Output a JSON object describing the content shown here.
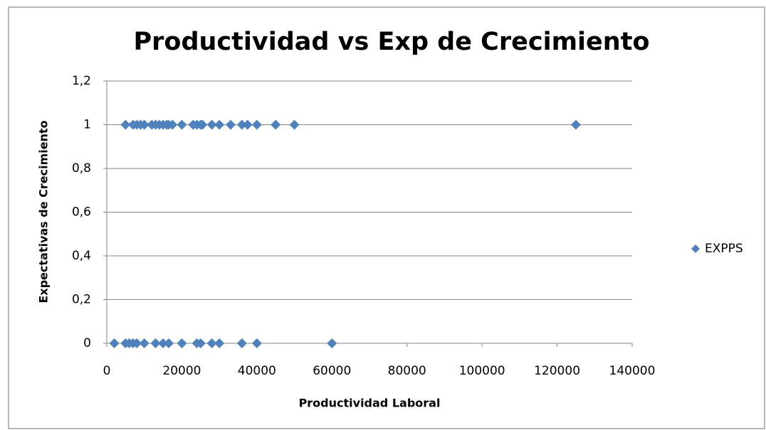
{
  "chart_data": {
    "type": "scatter",
    "title": "Productividad vs Exp de Crecimiento",
    "x_label": "Productividad Laboral",
    "y_label": "Expectativas de Crecimiento",
    "series": [
      {
        "name": "EXPPS",
        "color": "#4f81bd",
        "x": [
          5000,
          7000,
          8000,
          9000,
          10000,
          12000,
          13000,
          14000,
          15000,
          16000,
          16500,
          17500,
          20000,
          23000,
          24000,
          25000,
          25500,
          28000,
          30000,
          33000,
          36000,
          37500,
          40000,
          45000,
          50000,
          125000,
          2000,
          5000,
          6000,
          7000,
          8000,
          10000,
          13000,
          15000,
          16500,
          20000,
          24000,
          25000,
          28000,
          30000,
          36000,
          40000,
          60000
        ],
        "values": [
          1,
          1,
          1,
          1,
          1,
          1,
          1,
          1,
          1,
          1,
          1,
          1,
          1,
          1,
          1,
          1,
          1,
          1,
          1,
          1,
          1,
          1,
          1,
          1,
          1,
          1,
          0,
          0,
          0,
          0,
          0,
          0,
          0,
          0,
          0,
          0,
          0,
          0,
          0,
          0,
          0,
          0,
          0
        ]
      }
    ],
    "xlim": [
      0,
      140000
    ],
    "xticks": [
      0,
      20000,
      40000,
      60000,
      80000,
      100000,
      120000,
      140000
    ],
    "ylim": [
      0,
      1.2
    ],
    "yticks": [
      0,
      {
        "value": 0.2,
        "label": "0,2"
      },
      {
        "value": 0.4,
        "label": "0,4"
      },
      {
        "value": 0.6,
        "label": "0,6"
      },
      {
        "value": 0.8,
        "label": "0,8"
      },
      1,
      {
        "value": 1.2,
        "label": "1,2"
      }
    ],
    "grid": true,
    "legend": "right"
  }
}
